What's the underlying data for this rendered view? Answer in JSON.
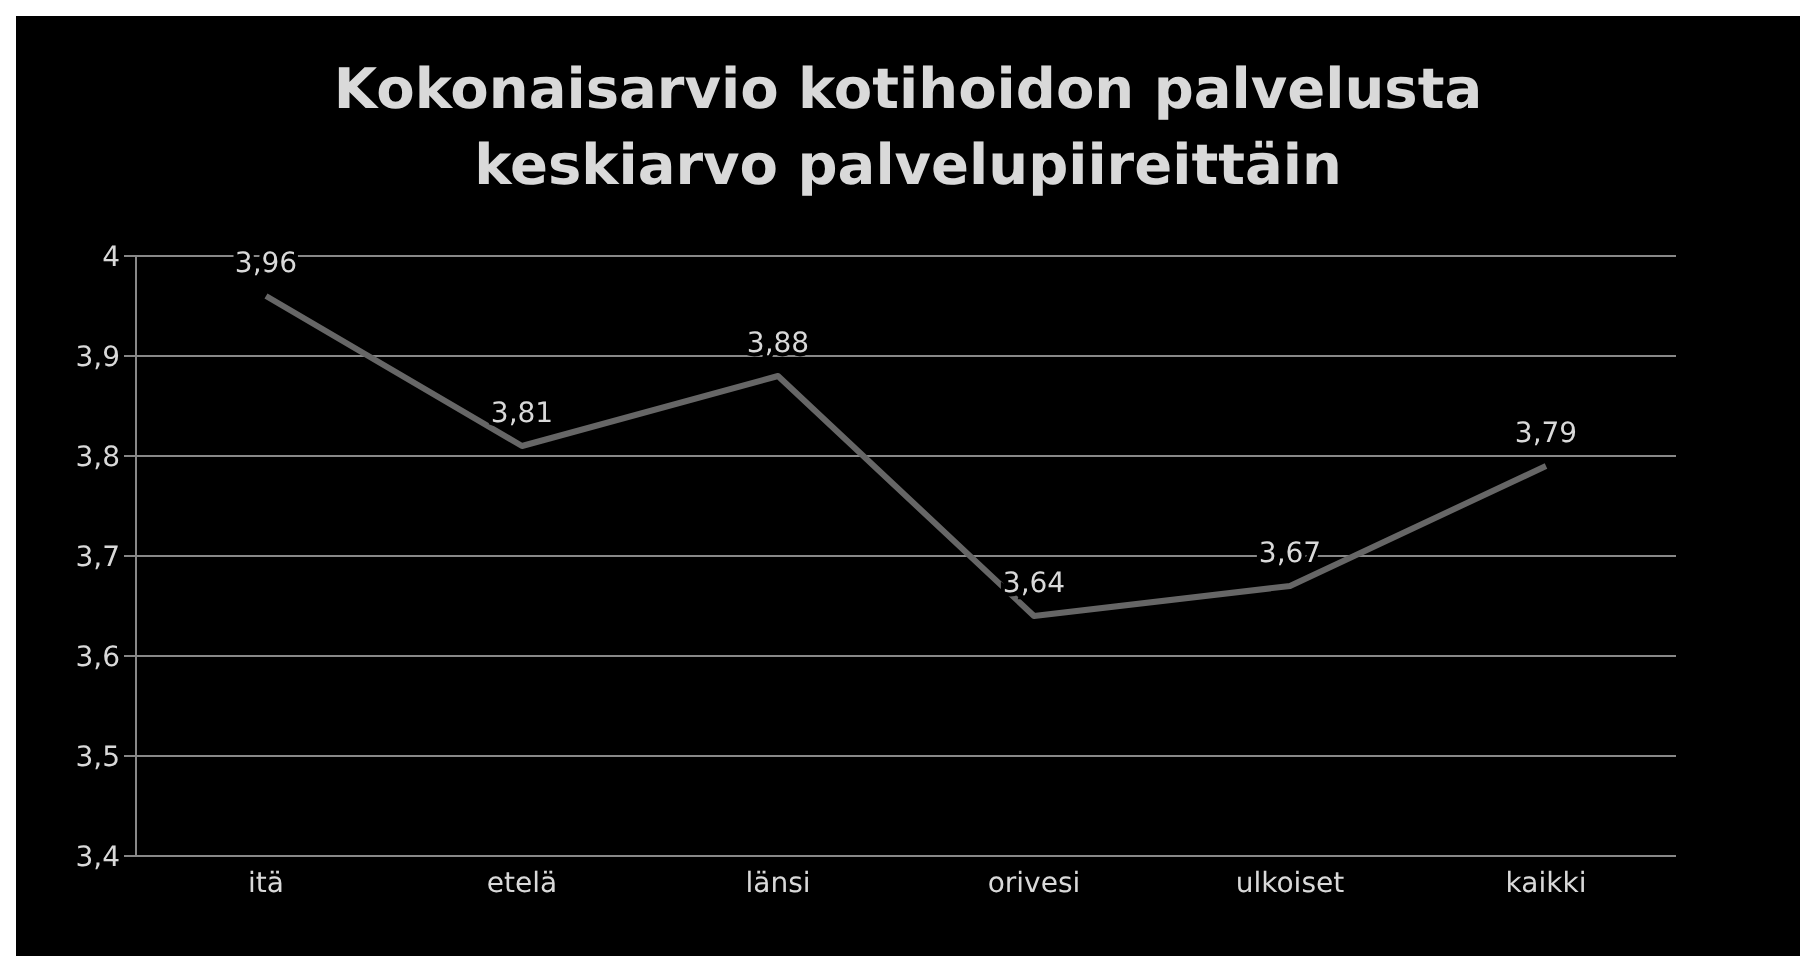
{
  "chart_data": {
    "type": "line",
    "title": "Kokonaisarvio kotihoidon palvelusta\nkeskiarvo palvelupiireittäin",
    "categories": [
      "itä",
      "etelä",
      "länsi",
      "orivesi",
      "ulkoiset",
      "kaikki"
    ],
    "series": [
      {
        "color": "#666666",
        "values": [
          3.96,
          3.81,
          3.88,
          3.64,
          3.67,
          3.79
        ]
      }
    ],
    "value_labels": [
      "3,96",
      "3,81",
      "3,88",
      "3,64",
      "3,67",
      "3,79"
    ],
    "ylim": [
      3.4,
      4
    ],
    "yticks": [
      {
        "value": 3.4,
        "label": "3,4"
      },
      {
        "value": 3.5,
        "label": "3,5"
      },
      {
        "value": 3.6,
        "label": "3,6"
      },
      {
        "value": 3.7,
        "label": "3,7"
      },
      {
        "value": 3.8,
        "label": "3,8"
      },
      {
        "value": 3.9,
        "label": "3,9"
      },
      {
        "value": 4,
        "label": "4"
      }
    ],
    "grid": "y",
    "marker": "none",
    "legend": false
  }
}
